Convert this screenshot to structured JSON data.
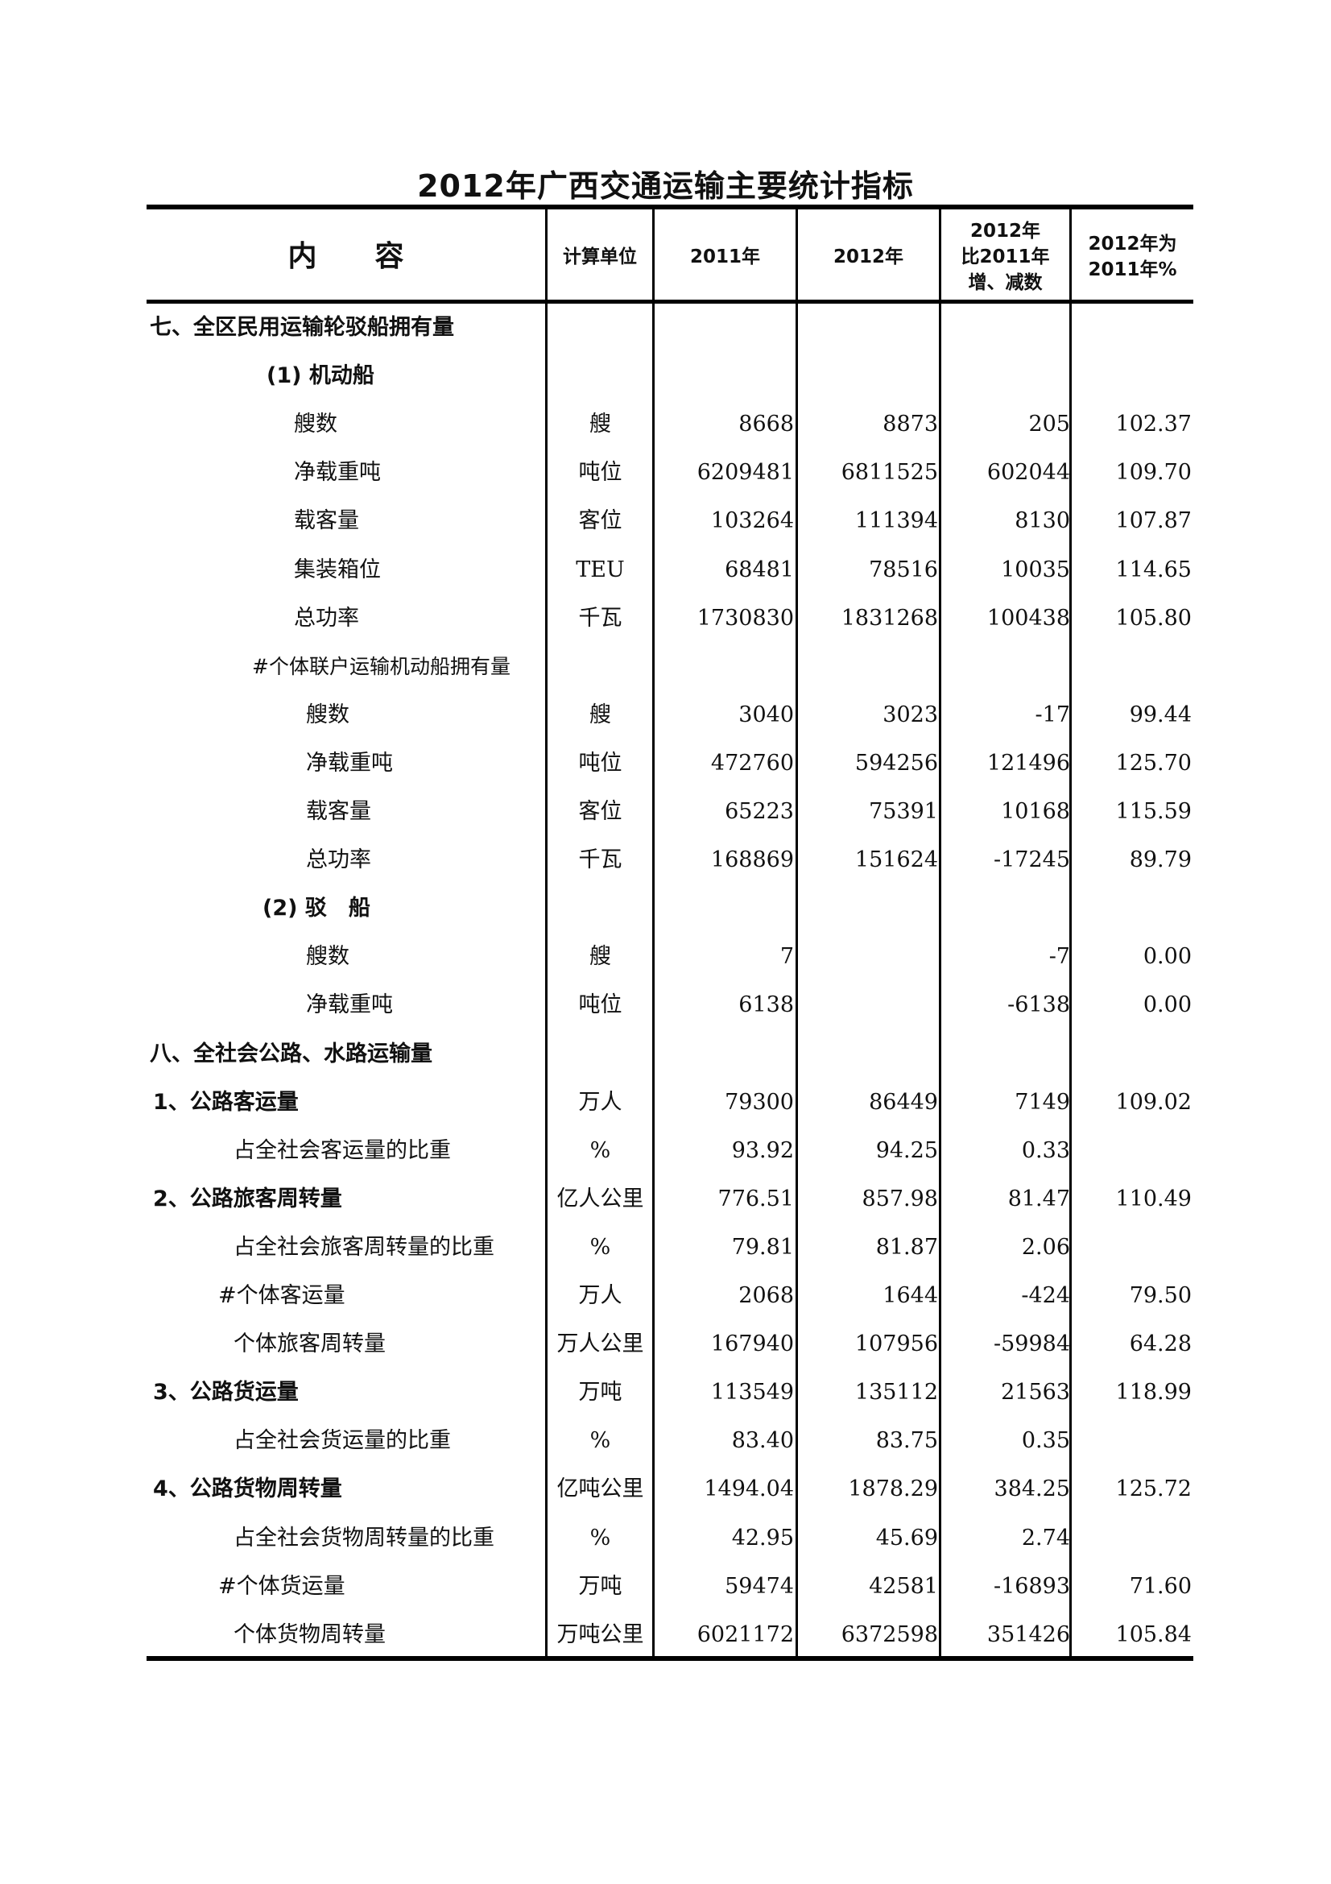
{
  "title": "2012年广西交通运输主要统计指标",
  "header": {
    "content": "内　　容",
    "unit": "计算单位",
    "y2011": "2011年",
    "y2012": "2012年",
    "diff": [
      "2012年",
      "比2011年",
      "增、减数"
    ],
    "pct": [
      "2012年为",
      "2011年%"
    ]
  },
  "rows": [
    {
      "type": "section",
      "label": "七、全区民用运输轮驳船拥有量",
      "unit": "",
      "v2011": "",
      "v2012": "",
      "diff": "",
      "pct": ""
    },
    {
      "type": "sub",
      "label": "(1) 机动船",
      "unit": "",
      "v2011": "",
      "v2012": "",
      "diff": "",
      "pct": ""
    },
    {
      "type": "item",
      "label": "艘数",
      "unit": "艘",
      "v2011": "8668",
      "v2012": "8873",
      "diff": "205",
      "pct": "102.37"
    },
    {
      "type": "item",
      "label": "净载重吨",
      "unit": "吨位",
      "v2011": "6209481",
      "v2012": "6811525",
      "diff": "602044",
      "pct": "109.70"
    },
    {
      "type": "item",
      "label": "载客量",
      "unit": "客位",
      "v2011": "103264",
      "v2012": "111394",
      "diff": "8130",
      "pct": "107.87"
    },
    {
      "type": "item",
      "label": "集装箱位",
      "unit": "TEU",
      "v2011": "68481",
      "v2012": "78516",
      "diff": "10035",
      "pct": "114.65"
    },
    {
      "type": "item",
      "label": "总功率",
      "unit": "千瓦",
      "v2011": "1730830",
      "v2012": "1831268",
      "diff": "100438",
      "pct": "105.80"
    },
    {
      "type": "note",
      "label": "#个体联户运输机动船拥有量",
      "unit": "",
      "v2011": "",
      "v2012": "",
      "diff": "",
      "pct": ""
    },
    {
      "type": "subitem",
      "label": "艘数",
      "unit": "艘",
      "v2011": "3040",
      "v2012": "3023",
      "diff": "-17",
      "pct": "99.44"
    },
    {
      "type": "subitem",
      "label": "净载重吨",
      "unit": "吨位",
      "v2011": "472760",
      "v2012": "594256",
      "diff": "121496",
      "pct": "125.70"
    },
    {
      "type": "subitem",
      "label": "载客量",
      "unit": "客位",
      "v2011": "65223",
      "v2012": "75391",
      "diff": "10168",
      "pct": "115.59"
    },
    {
      "type": "subitem",
      "label": "总功率",
      "unit": "千瓦",
      "v2011": "168869",
      "v2012": "151624",
      "diff": "-17245",
      "pct": "89.79"
    },
    {
      "type": "sub2",
      "label": "(2) 驳　船",
      "unit": "",
      "v2011": "",
      "v2012": "",
      "diff": "",
      "pct": ""
    },
    {
      "type": "subitem",
      "label": "艘数",
      "unit": "艘",
      "v2011": "7",
      "v2012": "",
      "diff": "-7",
      "pct": "0.00"
    },
    {
      "type": "subitem",
      "label": "净载重吨",
      "unit": "吨位",
      "v2011": "6138",
      "v2012": "",
      "diff": "-6138",
      "pct": "0.00"
    },
    {
      "type": "section",
      "label": "八、全社会公路、水路运输量",
      "unit": "",
      "v2011": "",
      "v2012": "",
      "diff": "",
      "pct": ""
    },
    {
      "type": "category",
      "label": "1、公路客运量",
      "unit": "万人",
      "v2011": "79300",
      "v2012": "86449",
      "diff": "7149",
      "pct": "109.02"
    },
    {
      "type": "share",
      "label": "占全社会客运量的比重",
      "unit": "%",
      "v2011": "93.92",
      "v2012": "94.25",
      "diff": "0.33",
      "pct": ""
    },
    {
      "type": "category",
      "label": "2、公路旅客周转量",
      "unit": "亿人公里",
      "v2011": "776.51",
      "v2012": "857.98",
      "diff": "81.47",
      "pct": "110.49"
    },
    {
      "type": "share",
      "label": "占全社会旅客周转量的比重",
      "unit": "%",
      "v2011": "79.81",
      "v2012": "81.87",
      "diff": "2.06",
      "pct": ""
    },
    {
      "type": "hash",
      "label": "#个体客运量",
      "unit": "万人",
      "v2011": "2068",
      "v2012": "1644",
      "diff": "-424",
      "pct": "79.50"
    },
    {
      "type": "share",
      "label": "个体旅客周转量",
      "unit": "万人公里",
      "v2011": "167940",
      "v2012": "107956",
      "diff": "-59984",
      "pct": "64.28"
    },
    {
      "type": "category",
      "label": "3、公路货运量",
      "unit": "万吨",
      "v2011": "113549",
      "v2012": "135112",
      "diff": "21563",
      "pct": "118.99"
    },
    {
      "type": "share",
      "label": "占全社会货运量的比重",
      "unit": "%",
      "v2011": "83.40",
      "v2012": "83.75",
      "diff": "0.35",
      "pct": ""
    },
    {
      "type": "category",
      "label": "4、公路货物周转量",
      "unit": "亿吨公里",
      "v2011": "1494.04",
      "v2012": "1878.29",
      "diff": "384.25",
      "pct": "125.72"
    },
    {
      "type": "share",
      "label": "占全社会货物周转量的比重",
      "unit": "%",
      "v2011": "42.95",
      "v2012": "45.69",
      "diff": "2.74",
      "pct": ""
    },
    {
      "type": "hash",
      "label": "#个体货运量",
      "unit": "万吨",
      "v2011": "59474",
      "v2012": "42581",
      "diff": "-16893",
      "pct": "71.60"
    },
    {
      "type": "share",
      "label": "个体货物周转量",
      "unit": "万吨公里",
      "v2011": "6021172",
      "v2012": "6372598",
      "diff": "351426",
      "pct": "105.84"
    }
  ]
}
